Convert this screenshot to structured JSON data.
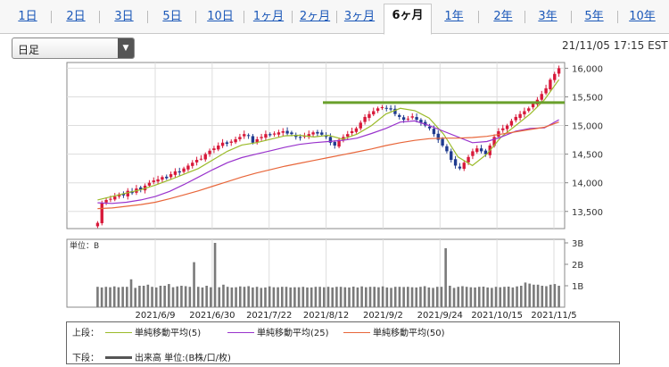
{
  "tabs": [
    {
      "label": "1日",
      "active": false
    },
    {
      "label": "2日",
      "active": false
    },
    {
      "label": "3日",
      "active": false
    },
    {
      "label": "5日",
      "active": false
    },
    {
      "label": "10日",
      "active": false
    },
    {
      "label": "1ヶ月",
      "active": false
    },
    {
      "label": "2ヶ月",
      "active": false
    },
    {
      "label": "3ヶ月",
      "active": false
    },
    {
      "label": "6ヶ月",
      "active": true
    },
    {
      "label": "1年",
      "active": false
    },
    {
      "label": "2年",
      "active": false
    },
    {
      "label": "3年",
      "active": false
    },
    {
      "label": "5年",
      "active": false
    },
    {
      "label": "10年",
      "active": false
    }
  ],
  "selector": {
    "value": "日足"
  },
  "timestamp": "21/11/05 17:15 EST",
  "chart_data": [
    {
      "type": "candlestick",
      "y_ticks": [
        "16,000",
        "15,500",
        "15,000",
        "14,500",
        "14,000",
        "13,500"
      ],
      "ylim": [
        13200,
        16100
      ],
      "resistance_level": 15400,
      "close_series": [
        13300,
        13650,
        13700,
        13720,
        13760,
        13800,
        13780,
        13860,
        13820,
        13900,
        13880,
        13950,
        14000,
        14040,
        14060,
        14100,
        14080,
        14150,
        14200,
        14180,
        14250,
        14300,
        14350,
        14400,
        14420,
        14500,
        14560,
        14600,
        14650,
        14700,
        14680,
        14720,
        14760,
        14800,
        14850,
        14820,
        14700,
        14760,
        14800,
        14850,
        14830,
        14860,
        14880,
        14900,
        14860,
        14850,
        14800,
        14790,
        14820,
        14850,
        14880,
        14860,
        14840,
        14800,
        14700,
        14650,
        14750,
        14800,
        14850,
        14900,
        14950,
        15050,
        15150,
        15200,
        15250,
        15300,
        15320,
        15300,
        15280,
        15200,
        15150,
        15100,
        15120,
        15160,
        15100,
        15050,
        15000,
        14950,
        14850,
        14750,
        14650,
        14550,
        14400,
        14300,
        14250,
        14350,
        14450,
        14550,
        14600,
        14550,
        14500,
        14650,
        14800,
        14900,
        14950,
        15000,
        15080,
        15150,
        15200,
        15250,
        15300,
        15380,
        15450,
        15550,
        15650,
        15800,
        15900,
        16000
      ],
      "ma": [
        {
          "name": "単純移動平均(5)",
          "color": "#9bbb2a",
          "values": [
            13700,
            13760,
            13820,
            13880,
            13960,
            14050,
            14150,
            14250,
            14400,
            14550,
            14660,
            14700,
            14760,
            14820,
            14830,
            14800,
            14830,
            14760,
            14850,
            15000,
            15200,
            15300,
            15260,
            15130,
            14850,
            14450,
            14300,
            14500,
            14800,
            15000,
            15200,
            15450,
            15800
          ]
        },
        {
          "name": "単純移動平均(25)",
          "color": "#9933cc",
          "values": [
            13650,
            13640,
            13660,
            13700,
            13760,
            13850,
            13970,
            14100,
            14230,
            14350,
            14440,
            14500,
            14560,
            14620,
            14670,
            14700,
            14720,
            14740,
            14780,
            14860,
            14950,
            15060,
            15080,
            15000,
            14900,
            14800,
            14700,
            14720,
            14800,
            14900,
            14950,
            14960,
            15100
          ]
        },
        {
          "name": "単純移動平均(50)",
          "color": "#e8663a",
          "values": [
            13550,
            13560,
            13590,
            13620,
            13660,
            13720,
            13790,
            13860,
            13940,
            14020,
            14100,
            14170,
            14230,
            14290,
            14340,
            14390,
            14440,
            14490,
            14540,
            14590,
            14650,
            14700,
            14740,
            14770,
            14780,
            14780,
            14790,
            14810,
            14850,
            14890,
            14930,
            14970,
            15060
          ]
        }
      ]
    },
    {
      "type": "bar",
      "y_ticks": [
        "3B",
        "2B",
        "1B"
      ],
      "ylabel": "単位：B",
      "ylim": [
        0,
        3
      ],
      "values": [
        0.95,
        0.92,
        0.95,
        0.93,
        0.97,
        0.93,
        0.95,
        0.95,
        1.3,
        0.9,
        1.0,
        1.0,
        1.05,
        0.95,
        0.92,
        1.0,
        1.0,
        1.08,
        0.93,
        0.97,
        1.0,
        0.98,
        0.95,
        2.1,
        0.95,
        0.92,
        1.0,
        0.93,
        3.0,
        0.93,
        1.05,
        0.95,
        0.92,
        0.93,
        0.97,
        0.95,
        0.98,
        0.92,
        0.95,
        0.9,
        0.92,
        0.97,
        0.93,
        0.93,
        0.95,
        0.95,
        0.92,
        0.93,
        0.93,
        0.95,
        0.92,
        0.92,
        0.95,
        0.95,
        0.93,
        0.95,
        0.92,
        0.95,
        0.95,
        0.93,
        0.92,
        0.96,
        0.92,
        0.97,
        0.93,
        0.95,
        0.95,
        0.93,
        0.97,
        0.92,
        0.9,
        0.95,
        0.95,
        0.94,
        0.95,
        0.93,
        0.92,
        0.95,
        0.98,
        0.92,
        0.9,
        0.95,
        0.95,
        2.75,
        1.0,
        0.9,
        0.95,
        0.98,
        0.95,
        0.93,
        0.92,
        0.95,
        0.96,
        0.92,
        0.9,
        0.95,
        0.93,
        0.95,
        0.96,
        0.92,
        0.97,
        1.0,
        1.15,
        1.1,
        1.05,
        1.05,
        1.0,
        0.98,
        1.05,
        1.08,
        1.0
      ]
    }
  ],
  "x_labels": [
    "2021/6/9",
    "2021/6/30",
    "2021/7/22",
    "2021/8/12",
    "2021/9/2",
    "2021/9/24",
    "2021/10/15",
    "2021/11/5"
  ],
  "legend": {
    "upper_label": "上段：",
    "lower_label": "下段：",
    "ma5": "単純移動平均(5)",
    "ma25": "単純移動平均(25)",
    "ma50": "単純移動平均(50)",
    "volume": "出来高 単位:(B株/口/枚)",
    "colors": {
      "ma5": "#9bbb2a",
      "ma25": "#9933cc",
      "ma50": "#e8663a",
      "volume": "#555555"
    }
  }
}
